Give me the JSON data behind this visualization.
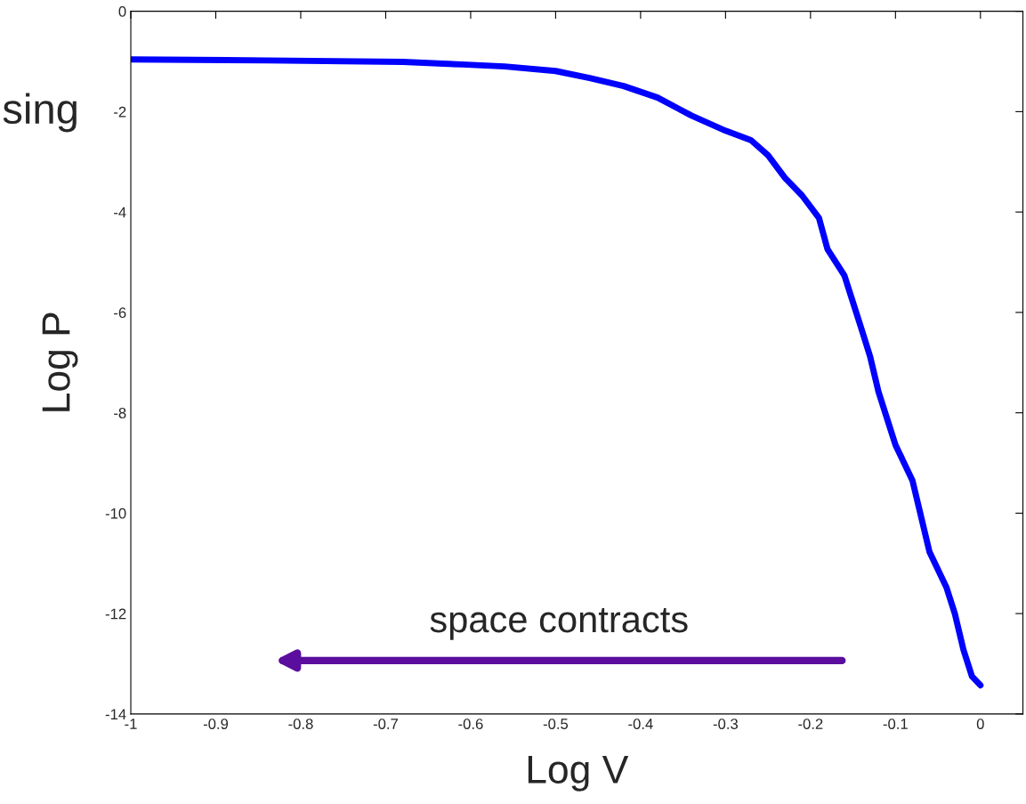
{
  "chart_data": {
    "type": "line",
    "xlabel": "Log V",
    "ylabel": "Log P",
    "annotations": [
      "sing",
      "space contracts"
    ],
    "x": [
      -1,
      -0.84,
      -0.68,
      -0.61,
      -0.56,
      -0.5,
      -0.46,
      -0.42,
      -0.38,
      -0.34,
      -0.3,
      -0.27,
      -0.25,
      -0.23,
      -0.21,
      -0.19,
      -0.18,
      -0.16,
      -0.15,
      -0.14,
      -0.13,
      -0.12,
      -0.11,
      -0.1,
      -0.08,
      -0.07,
      -0.06,
      -0.04,
      -0.03,
      -0.02,
      -0.01,
      0
    ],
    "series": [
      {
        "color": "#0000ff",
        "values": [
          -0.96,
          -0.98,
          -1.01,
          -1.06,
          -1.1,
          -1.19,
          -1.33,
          -1.49,
          -1.72,
          -2.08,
          -2.38,
          -2.57,
          -2.87,
          -3.32,
          -3.67,
          -4.12,
          -4.74,
          -5.27,
          -5.8,
          -6.33,
          -6.87,
          -7.58,
          -8.11,
          -8.64,
          -9.35,
          -10.06,
          -10.77,
          -11.48,
          -12.01,
          -12.72,
          -13.25,
          -13.43
        ]
      }
    ],
    "xlim": [
      -1,
      0.05
    ],
    "ylim": [
      -14,
      0
    ],
    "xticks": [
      -1,
      -0.9,
      -0.8,
      -0.7,
      -0.6,
      -0.5,
      -0.4,
      -0.3,
      -0.2,
      -0.1,
      0
    ],
    "yticks": [
      -14,
      -12,
      -10,
      -8,
      -6,
      -4,
      -2,
      0
    ],
    "grid": false,
    "legend": false,
    "marker": "none",
    "line_style": "solid"
  }
}
